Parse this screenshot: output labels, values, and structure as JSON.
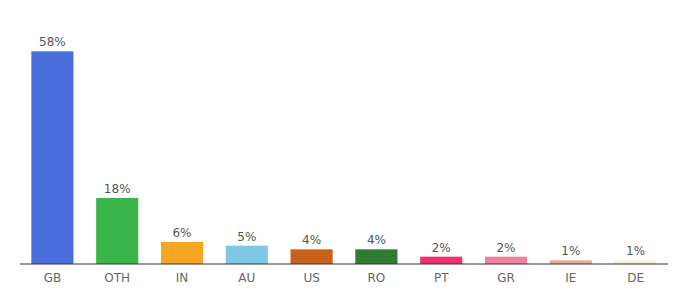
{
  "chart_data": {
    "type": "bar",
    "categories": [
      "GB",
      "OTH",
      "IN",
      "AU",
      "US",
      "RO",
      "PT",
      "GR",
      "IE",
      "DE"
    ],
    "values": [
      58,
      18,
      6,
      5,
      4,
      4,
      2,
      2,
      1,
      1
    ],
    "value_labels": [
      "58%",
      "18%",
      "6%",
      "5%",
      "4%",
      "4%",
      "2%",
      "2%",
      "1%",
      "1%"
    ],
    "colors": [
      "#4a6fdc",
      "#3ab54a",
      "#f5a623",
      "#7ec8e3",
      "#c8611a",
      "#2e7d32",
      "#f03070",
      "#f080a0",
      "#f0a898",
      "#f5f0dc"
    ],
    "ylim": [
      0,
      66
    ],
    "data_labels": true,
    "grid": false,
    "tick_labels": "x"
  }
}
